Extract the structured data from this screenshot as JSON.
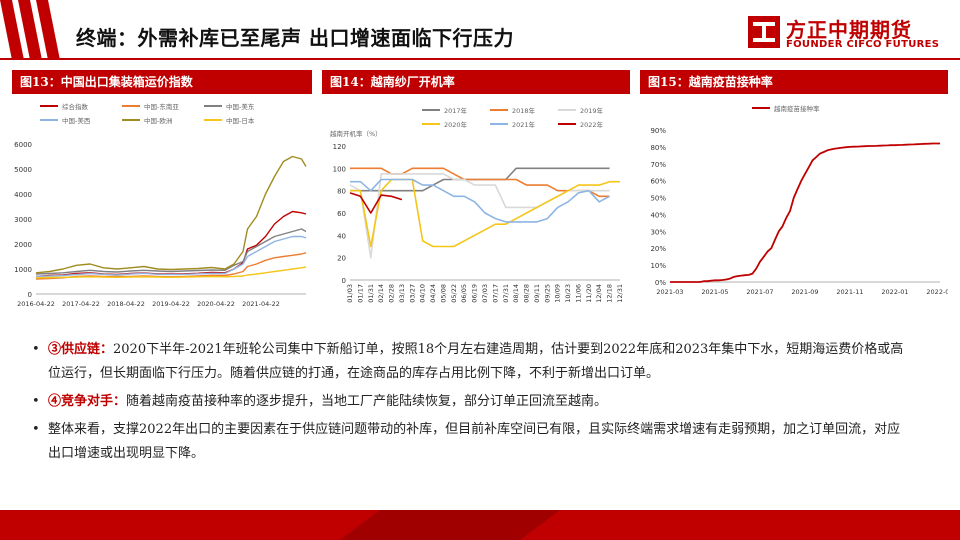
{
  "header": {
    "title": "终端：外需补库已至尾声 出口增速面临下行压力",
    "logo_cn": "方正中期期货",
    "logo_en": "FOUNDER CIFCO FUTURES",
    "accent": "#c00000"
  },
  "panels": [
    {
      "heading": "图13：中国出口集装箱运价指数"
    },
    {
      "heading": "图14：越南纱厂开机率"
    },
    {
      "heading": "图15：越南疫苗接种率"
    }
  ],
  "bullets": [
    {
      "marker": "•",
      "highlight": "③供应链：",
      "text": "2020下半年-2021年班轮公司集中下新船订单，按照18个月左右建造周期，估计要到2022年底和2023年集中下水，短期海运费价格或高位运行，但长期面临下行压力。随着供应链的打通，在途商品的库存占用比例下降，不利于新增出口订单。"
    },
    {
      "marker": "•",
      "highlight": "④竞争对手：",
      "text": "随着越南疫苗接种率的逐步提升，当地工厂产能陆续恢复，部分订单正回流至越南。"
    },
    {
      "marker": "•",
      "highlight": "",
      "text": "整体来看，支撑2022年出口的主要因素在于供应链问题带动的补库，但目前补库空间已有限，且实际终端需求增速有走弱预期，加之订单回流，对应出口增速或出现明显下降。"
    }
  ],
  "chart_data": [
    {
      "type": "line",
      "title": "图13：中国出口集装箱运价指数",
      "x_ticks": [
        "2016-04-22",
        "2017-04-22",
        "2018-04-22",
        "2019-04-22",
        "2020-04-22",
        "2021-04-22"
      ],
      "ylim": [
        0,
        6000
      ],
      "y_ticks": [
        0,
        1000,
        2000,
        3000,
        4000,
        5000,
        6000
      ],
      "legend_position": "top",
      "x": [
        2016.3,
        2016.6,
        2016.9,
        2017.2,
        2017.5,
        2017.8,
        2018.1,
        2018.4,
        2018.7,
        2019.0,
        2019.3,
        2019.6,
        2019.9,
        2020.2,
        2020.5,
        2020.7,
        2020.9,
        2021.0,
        2021.2,
        2021.4,
        2021.6,
        2021.8,
        2022.0,
        2022.2,
        2022.3
      ],
      "series": [
        {
          "name": "综合指数",
          "color": "#c00000",
          "values": [
            700,
            740,
            760,
            820,
            850,
            800,
            780,
            820,
            840,
            800,
            800,
            810,
            830,
            860,
            850,
            1000,
            1250,
            1800,
            1950,
            2300,
            2800,
            3100,
            3300,
            3250,
            3200
          ]
        },
        {
          "name": "中国-东南亚",
          "color": "#ed7d31",
          "values": [
            600,
            620,
            650,
            700,
            720,
            700,
            700,
            700,
            720,
            700,
            690,
            700,
            720,
            750,
            740,
            800,
            900,
            1100,
            1200,
            1350,
            1450,
            1500,
            1550,
            1600,
            1650
          ]
        },
        {
          "name": "中国-美东",
          "color": "#808080",
          "values": [
            800,
            820,
            850,
            900,
            950,
            900,
            880,
            920,
            950,
            920,
            900,
            920,
            940,
            960,
            950,
            1150,
            1300,
            1700,
            1900,
            2100,
            2300,
            2400,
            2500,
            2600,
            2500
          ]
        },
        {
          "name": "中国-美西",
          "color": "#8eb4e3",
          "values": [
            700,
            720,
            740,
            780,
            820,
            790,
            760,
            800,
            830,
            790,
            780,
            790,
            810,
            830,
            820,
            1000,
            1200,
            1500,
            1700,
            1900,
            2100,
            2200,
            2300,
            2300,
            2250
          ]
        },
        {
          "name": "中国-欧洲",
          "color": "#a08c20",
          "values": [
            850,
            900,
            1000,
            1150,
            1200,
            1050,
            1000,
            1050,
            1100,
            1000,
            980,
            1000,
            1020,
            1060,
            1000,
            1200,
            1700,
            2600,
            3100,
            4000,
            4700,
            5300,
            5500,
            5400,
            5100
          ]
        },
        {
          "name": "中国-日本",
          "color": "#f5c518",
          "values": [
            650,
            660,
            670,
            680,
            690,
            680,
            670,
            680,
            690,
            680,
            670,
            680,
            690,
            700,
            690,
            700,
            720,
            760,
            800,
            850,
            900,
            950,
            1000,
            1050,
            1080
          ]
        }
      ]
    },
    {
      "type": "line",
      "title": "图14：越南纱厂开机率",
      "ylabel": "越南开机率（%）",
      "ylim": [
        0,
        120
      ],
      "y_ticks": [
        0,
        20,
        40,
        60,
        80,
        100,
        120
      ],
      "x_ticks": [
        "01/03",
        "01/17",
        "01/31",
        "02/14",
        "02/28",
        "03/13",
        "03/27",
        "04/10",
        "04/24",
        "05/08",
        "05/22",
        "06/05",
        "06/19",
        "07/03",
        "07/17",
        "07/31",
        "08/14",
        "08/28",
        "09/11",
        "09/25",
        "10/09",
        "10/23",
        "11/06",
        "11/20",
        "12/04",
        "12/18",
        "12/31"
      ],
      "legend_position": "top",
      "series": [
        {
          "name": "2017年",
          "color": "#808080",
          "values": [
            80,
            80,
            80,
            80,
            80,
            80,
            80,
            80,
            85,
            90,
            90,
            90,
            90,
            90,
            90,
            90,
            100,
            100,
            100,
            100,
            100,
            100,
            100,
            100,
            100,
            100,
            null
          ]
        },
        {
          "name": "2018年",
          "color": "#ed7d31",
          "values": [
            100,
            100,
            100,
            100,
            95,
            95,
            100,
            100,
            100,
            100,
            95,
            90,
            90,
            90,
            90,
            90,
            90,
            85,
            85,
            85,
            80,
            80,
            80,
            80,
            75,
            75,
            null
          ]
        },
        {
          "name": "2019年",
          "color": "#d9d9d9",
          "values": [
            85,
            80,
            20,
            95,
            95,
            95,
            95,
            95,
            95,
            95,
            90,
            90,
            85,
            85,
            85,
            65,
            65,
            65,
            65,
            70,
            75,
            80,
            80,
            80,
            80,
            80,
            null
          ]
        },
        {
          "name": "2020年",
          "color": "#f5c518",
          "values": [
            80,
            80,
            30,
            80,
            90,
            90,
            90,
            35,
            30,
            30,
            30,
            35,
            40,
            45,
            50,
            50,
            55,
            60,
            65,
            70,
            75,
            80,
            85,
            85,
            85,
            88,
            88
          ]
        },
        {
          "name": "2021年",
          "color": "#8eb4e3",
          "values": [
            88,
            88,
            80,
            90,
            90,
            90,
            90,
            85,
            85,
            80,
            75,
            75,
            70,
            60,
            55,
            52,
            52,
            52,
            52,
            55,
            65,
            70,
            78,
            80,
            70,
            75,
            null
          ]
        },
        {
          "name": "2022年",
          "color": "#c00000",
          "values": [
            78,
            75,
            60,
            76,
            75,
            72,
            null,
            null,
            null,
            null,
            null,
            null,
            null,
            null,
            null,
            null,
            null,
            null,
            null,
            null,
            null,
            null,
            null,
            null,
            null,
            null,
            null
          ]
        }
      ]
    },
    {
      "type": "line",
      "title": "图15：越南疫苗接种率",
      "ylim": [
        0,
        90
      ],
      "y_ticks": [
        "0%",
        "10%",
        "20%",
        "30%",
        "40%",
        "50%",
        "60%",
        "70%",
        "80%",
        "90%"
      ],
      "x_ticks": [
        "2021-03",
        "2021-05",
        "2021-07",
        "2021-09",
        "2021-11",
        "2022-01",
        "2022-03"
      ],
      "legend_position": "top",
      "x": [
        0,
        1,
        2,
        3,
        4,
        5,
        6,
        7,
        8,
        9,
        10,
        11,
        12,
        13,
        14,
        15,
        16,
        17,
        18,
        19,
        20,
        21,
        22,
        23,
        24,
        25,
        26,
        27,
        28,
        29,
        30,
        31,
        32,
        33,
        34,
        35,
        36,
        37,
        38,
        39,
        40,
        41,
        42,
        43,
        44,
        45,
        46,
        47,
        48,
        49,
        50,
        51,
        52,
        53,
        54,
        55,
        56,
        57,
        58,
        59,
        60,
        61,
        62,
        63,
        64,
        65,
        66,
        67,
        68,
        69,
        70,
        71,
        72
      ],
      "series": [
        {
          "name": "越南疫苗接种率",
          "color": "#c00000",
          "values": [
            0,
            0,
            0,
            0,
            0,
            0,
            0,
            0,
            0,
            0.5,
            0.5,
            0.8,
            1,
            1,
            1.2,
            1.5,
            2,
            3,
            3.5,
            3.8,
            4,
            4.2,
            5,
            8,
            12,
            15,
            18,
            20,
            25,
            30,
            33,
            38,
            42,
            50,
            55,
            60,
            64,
            68,
            72,
            74,
            76,
            77,
            78,
            78.5,
            79,
            79.3,
            79.6,
            79.8,
            80,
            80.1,
            80.2,
            80.3,
            80.4,
            80.5,
            80.5,
            80.6,
            80.7,
            80.8,
            80.9,
            81,
            81,
            81.1,
            81.2,
            81.3,
            81.4,
            81.5,
            81.6,
            81.7,
            81.8,
            81.9,
            82,
            82,
            82
          ]
        }
      ]
    }
  ]
}
